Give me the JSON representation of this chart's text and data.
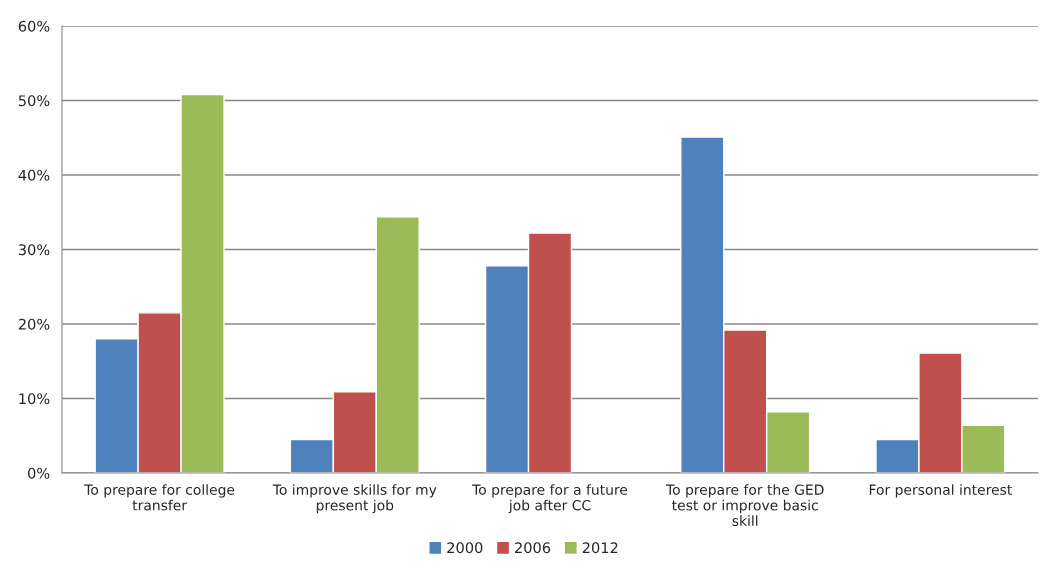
{
  "chart_data": {
    "type": "bar",
    "categories": [
      "To prepare for college transfer",
      "To improve skills for my present job",
      "To prepare for a future job after CC",
      "To prepare for the GED test or improve basic skill",
      "For personal interest"
    ],
    "series": [
      {
        "name": "2000",
        "color": "#4f81bd",
        "values": [
          18.0,
          4.5,
          27.8,
          45.1,
          4.5
        ]
      },
      {
        "name": "2006",
        "color": "#c0504d",
        "values": [
          21.5,
          10.9,
          32.2,
          19.2,
          16.1
        ]
      },
      {
        "name": "2012",
        "color": "#9bbb59",
        "values": [
          50.8,
          34.4,
          null,
          8.2,
          6.4
        ]
      }
    ],
    "ylim": [
      0,
      60
    ],
    "yticks": [
      {
        "value": 0,
        "label": "0%"
      },
      {
        "value": 10,
        "label": "10%"
      },
      {
        "value": 20,
        "label": "20%"
      },
      {
        "value": 30,
        "label": "30%"
      },
      {
        "value": 40,
        "label": "40%"
      },
      {
        "value": 50,
        "label": "50%"
      },
      {
        "value": 60,
        "label": "60%"
      }
    ],
    "grid": "y",
    "legend": "bottom"
  }
}
